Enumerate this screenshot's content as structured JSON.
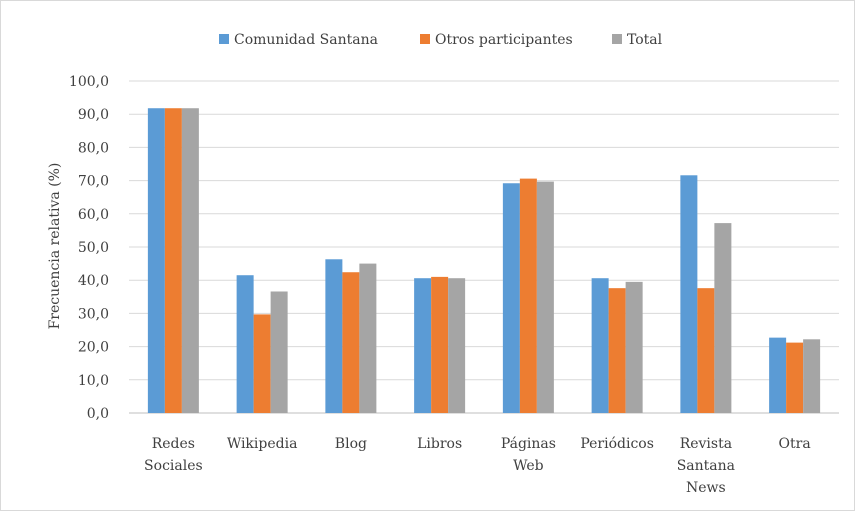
{
  "chart_data": {
    "type": "bar",
    "categories": [
      [
        "Redes",
        "Sociales"
      ],
      [
        "Wikipedia"
      ],
      [
        "Blog"
      ],
      [
        "Libros"
      ],
      [
        "Páginas",
        "Web"
      ],
      [
        "Periódicos"
      ],
      [
        "Revista",
        "Santana",
        "News"
      ],
      [
        "Otra"
      ]
    ],
    "series": [
      {
        "name": "Comunidad Santana",
        "color": "#5b9bd5",
        "values": [
          91.8,
          41.5,
          46.3,
          40.6,
          69.2,
          40.6,
          71.6,
          22.7
        ]
      },
      {
        "name": "Otros participantes",
        "color": "#ed7d31",
        "values": [
          91.8,
          29.7,
          42.4,
          41.0,
          70.6,
          37.6,
          37.6,
          21.2
        ]
      },
      {
        "name": "Total",
        "color": "#a5a5a5",
        "values": [
          91.8,
          36.6,
          45.0,
          40.6,
          69.7,
          39.5,
          57.2,
          22.2
        ]
      }
    ],
    "ylabel": "Frecuencia relativa (%)",
    "ylim": [
      0,
      100
    ],
    "yticks": [
      "0,0",
      "10,0",
      "20,0",
      "30,0",
      "40,0",
      "50,0",
      "60,0",
      "70,0",
      "80,0",
      "90,0",
      "100,0"
    ],
    "grid": true,
    "legend_position": "top"
  }
}
